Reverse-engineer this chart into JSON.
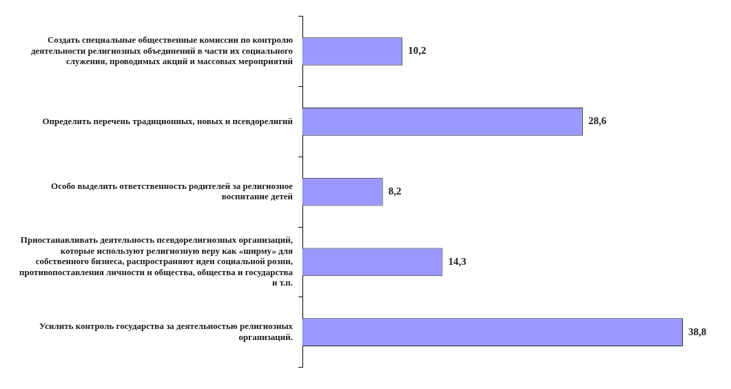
{
  "chart_data": {
    "type": "bar",
    "orientation": "horizontal",
    "categories": [
      "Создать специальные общественные комиссии по контролю деятельности религиозных объединений в части их социального служения, проводимых акций и массовых мероприятий",
      "Определить перечень традиционных, новых и псевдорелигий",
      "Особо выделить ответственность родителей за религиозное воспитание детей",
      "Приостанавливать деятельность псевдорелигиозных организаций, которые используют религиозную веру как «ширму» для собственного бизнеса, распространяют идеи социальной розни, противопоставления личности и общества, общества и государства и т.п.",
      "Усилить контроль государства за деятельностью религиозных организаций."
    ],
    "values": [
      10.2,
      28.6,
      8.2,
      14.3,
      38.8
    ],
    "value_labels": [
      "10,2",
      "28,6",
      "8,2",
      "14,3",
      "38,8"
    ],
    "color": "#9999ff"
  }
}
